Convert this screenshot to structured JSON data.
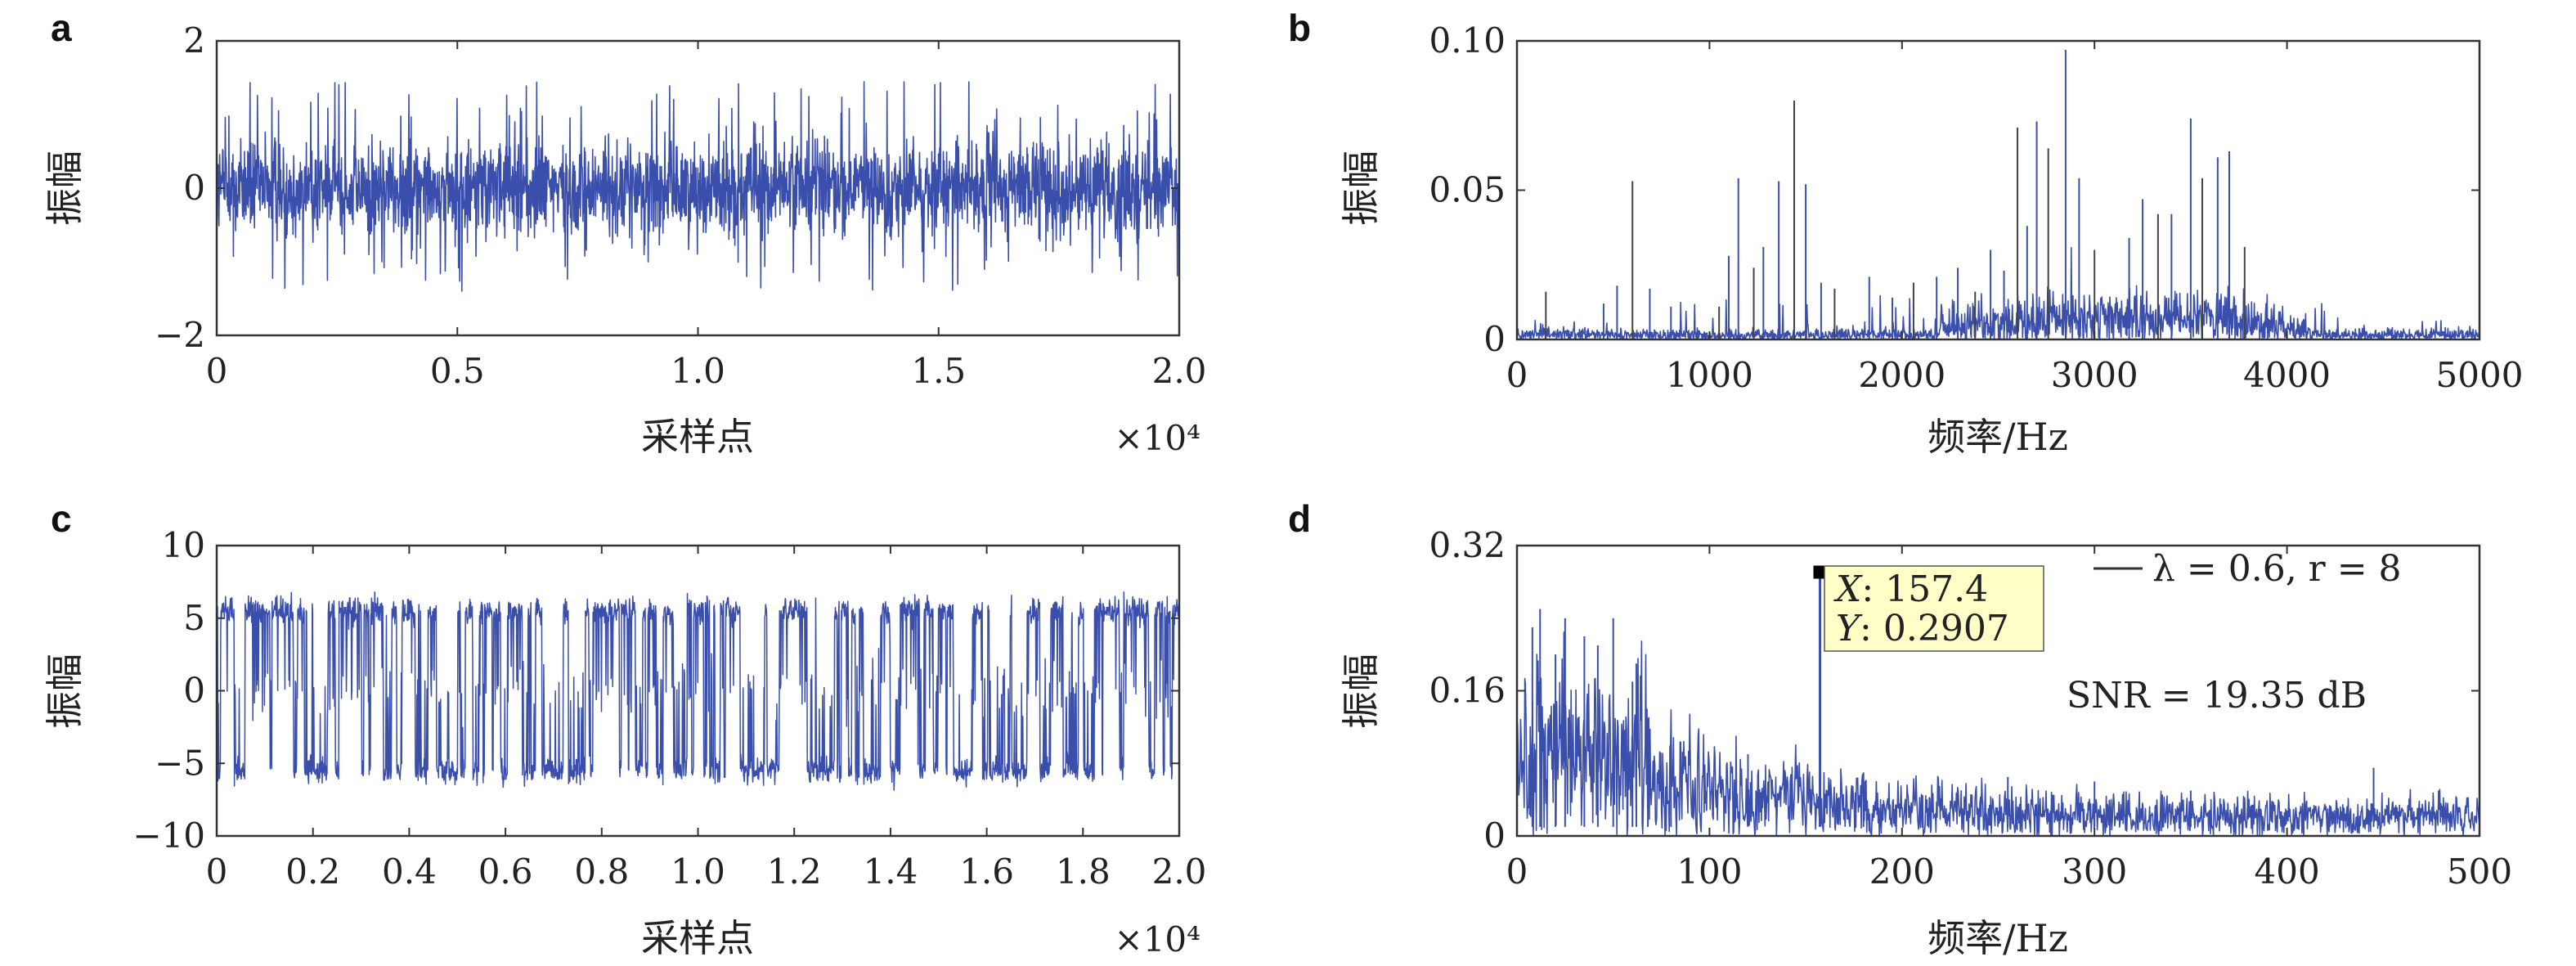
{
  "colors": {
    "signal": "#3a4eab",
    "signal_alt": "#2f8a8a",
    "frame": "#333333",
    "tip_bg": "#ffffc8"
  },
  "chart_data": [
    {
      "panel": "a",
      "type": "line",
      "xlabel": "采样点",
      "ylabel": "振幅",
      "x_multiplier": "×10⁴",
      "xlim": [
        0,
        2.0
      ],
      "ylim": [
        -2,
        2
      ],
      "xticks": [
        "0",
        "0.5",
        "1.0",
        "1.5",
        "2.0"
      ],
      "yticks": [
        "−2",
        "0",
        "2"
      ],
      "description": "dense noise signal, mostly within ±0.9 with spikes up to ±1.5",
      "series": [
        {
          "envelope_core": 0.9,
          "peak_max": 1.5,
          "peak_min": -1.4
        }
      ]
    },
    {
      "panel": "b",
      "type": "line",
      "xlabel": "频率/Hz",
      "ylabel": "振幅",
      "xlim": [
        0,
        5000
      ],
      "ylim": [
        0,
        0.1
      ],
      "xticks": [
        "0",
        "1000",
        "2000",
        "3000",
        "4000",
        "5000"
      ],
      "yticks": [
        "0",
        "0.05",
        "0.10"
      ],
      "series": [
        {
          "peaks_x": [
            150,
            450,
            520,
            600,
            690,
            800,
            1050,
            1100,
            1150,
            1230,
            1280,
            1360,
            1440,
            1500,
            1580,
            1650,
            1830,
            1950,
            2060,
            2180,
            2290,
            2380,
            2460,
            2530,
            2600,
            2650,
            2700,
            2760,
            2850,
            2920,
            3000,
            3180,
            3250,
            3330,
            3400,
            3500,
            3560,
            3640,
            3700,
            3780
          ],
          "peaks_y": [
            0.016,
            0.012,
            0.018,
            0.053,
            0.017,
            0.011,
            0.011,
            0.028,
            0.054,
            0.024,
            0.031,
            0.053,
            0.08,
            0.052,
            0.019,
            0.017,
            0.021,
            0.014,
            0.019,
            0.021,
            0.024,
            0.016,
            0.03,
            0.023,
            0.071,
            0.038,
            0.073,
            0.064,
            0.097,
            0.054,
            0.03,
            0.034,
            0.047,
            0.042,
            0.042,
            0.074,
            0.054,
            0.061,
            0.063,
            0.031
          ]
        }
      ]
    },
    {
      "panel": "c",
      "type": "line",
      "xlabel": "采样点",
      "ylabel": "振幅",
      "x_multiplier": "×10⁴",
      "xlim": [
        0,
        2.0
      ],
      "ylim": [
        -10,
        10
      ],
      "xticks": [
        "0",
        "0.2",
        "0.4",
        "0.6",
        "0.8",
        "1.0",
        "1.2",
        "1.4",
        "1.6",
        "1.8",
        "2.0"
      ],
      "yticks": [
        "−10",
        "−5",
        "0",
        "5",
        "10"
      ],
      "description": "bistable switching signal hopping between about +5.5 and −5.5 with noise",
      "series": [
        {
          "upper_state": 5.5,
          "lower_state": -5.5,
          "peak_max": 6.8,
          "peak_min": -7.0
        }
      ]
    },
    {
      "panel": "d",
      "type": "line",
      "xlabel": "频率/Hz",
      "ylabel": "振幅",
      "xlim": [
        0,
        500
      ],
      "ylim": [
        0,
        0.32
      ],
      "xticks": [
        "0",
        "100",
        "200",
        "300",
        "400",
        "500"
      ],
      "yticks": [
        "0",
        "0.16",
        "0.32"
      ],
      "legend": {
        "label": "λ = 0.6, r = 8",
        "position": "top-right"
      },
      "annotation": {
        "text": "SNR = 19.35 dB"
      },
      "datatip": {
        "x_label": "X",
        "x_value": "157.4",
        "y_label": "Y",
        "y_value": "0.2907"
      },
      "series": [
        {
          "name": "λ = 0.6, r = 8",
          "peak_x": 157.4,
          "peak_y": 0.2907,
          "spikes_x": [
            8,
            12,
            20,
            25,
            35,
            42,
            50,
            60,
            62,
            68,
            80,
            120,
            180,
            255,
            300,
            350,
            445
          ],
          "spikes_y": [
            0.23,
            0.25,
            0.2,
            0.24,
            0.22,
            0.21,
            0.24,
            0.17,
            0.19,
            0.13,
            0.11,
            0.09,
            0.07,
            0.065,
            0.06,
            0.05,
            0.075
          ]
        }
      ]
    }
  ]
}
